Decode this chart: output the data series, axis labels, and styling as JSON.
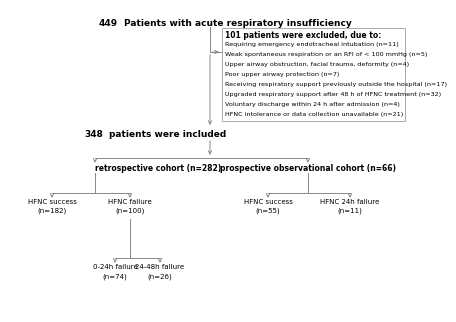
{
  "bg_color": "#ffffff",
  "title_num": "449",
  "title_text": "Patients with acute respiratory insufficiency",
  "exclusion_header": "101 patients were excluded, due to:",
  "exclusion_lines": [
    "Requiring emergency endotracheal intubation (n=11)",
    "Weak spontaneous respiration or an RFI of < 100 mmHg (n=5)",
    "Upper airway obstruction, facial trauma, deformity (n=4)",
    "Poor upper airway protection (n=7)",
    "Receiving respiratory support previously outside the hospital (n=17)",
    "Upgraded respiratory support after 48 h of HFNC treatment (n=32)",
    "Voluntary discharge within 24 h after admission (n=4)",
    "HFNC intolerance or data collection unavailable (n=21)"
  ],
  "included_num": "348",
  "included_text": "patients were included",
  "retro_label": "retrospective cohort (n=282)",
  "prosp_label": "prospective observational cohort (n=66)",
  "retro_success_l1": "HFNC success",
  "retro_success_l2": "(n=182)",
  "retro_failure_l1": "HFNC failure",
  "retro_failure_l2": "(n=100)",
  "prosp_success_l1": "HFNC success",
  "prosp_success_l2": "(n=55)",
  "prosp_failure_l1": "HFNC 24h failure",
  "prosp_failure_l2": "(n=11)",
  "fail_0_24_l1": "0-24h failure",
  "fail_0_24_l2": "(n=74)",
  "fail_24_48_l1": "24-48h failure",
  "fail_24_48_l2": "(n=26)",
  "arrow_color": "#888888",
  "text_color": "#000000",
  "box_edge_color": "#aaaaaa"
}
